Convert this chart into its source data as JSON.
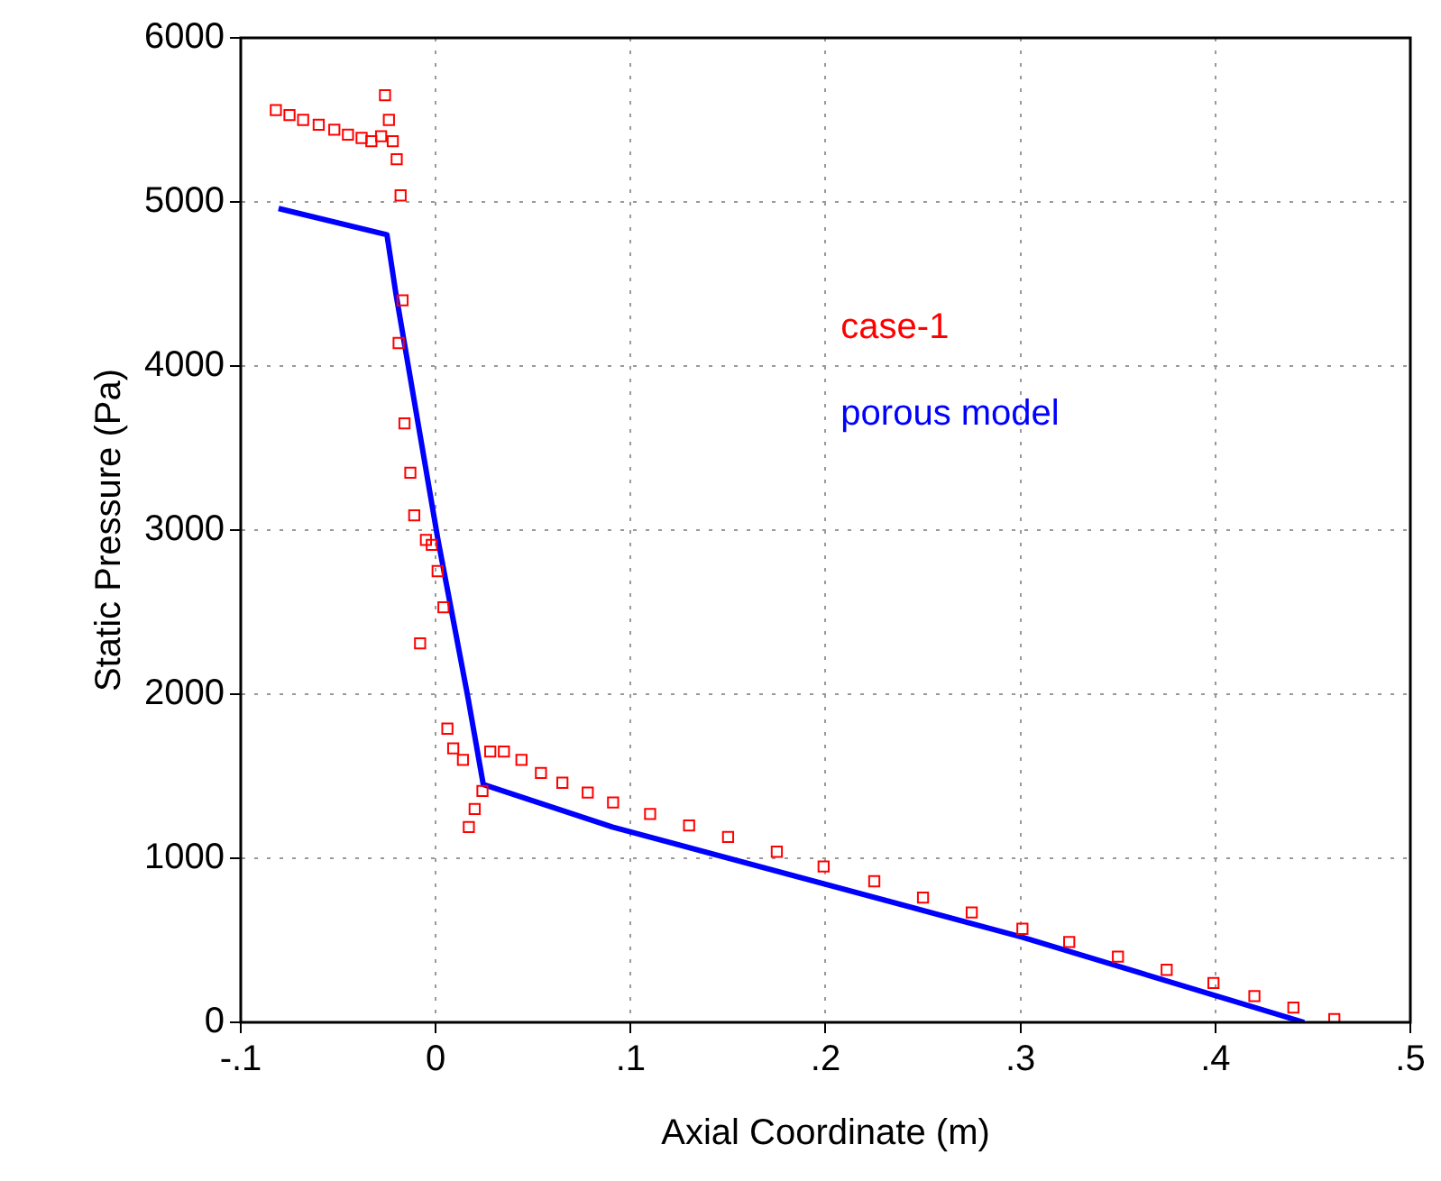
{
  "chart_data": {
    "type": "scatter",
    "xlabel": "Axial Coordinate (m)",
    "ylabel": "Static Pressure (Pa)",
    "xlim": [
      -0.1,
      0.5
    ],
    "xticks": [
      {
        "value": -0.1,
        "label": "-.1"
      },
      0,
      {
        "value": 0.1,
        "label": ".1"
      },
      {
        "value": 0.2,
        "label": ".2"
      },
      {
        "value": 0.3,
        "label": ".3"
      },
      {
        "value": 0.4,
        "label": ".4"
      },
      {
        "value": 0.5,
        "label": ".5"
      }
    ],
    "ylim": [
      0,
      6000
    ],
    "yticks": [
      0,
      1000,
      2000,
      3000,
      4000,
      5000,
      6000
    ],
    "grid": true,
    "legend": "top right",
    "series": [
      {
        "name": "case-1",
        "color": "#ff0000",
        "marker": "square",
        "x": [
          -0.082,
          -0.075,
          -0.068,
          -0.06,
          -0.052,
          -0.045,
          -0.038,
          -0.033,
          -0.028,
          -0.026,
          -0.024,
          -0.022,
          -0.02,
          -0.018,
          -0.017,
          -0.019,
          -0.016,
          -0.013,
          -0.011,
          -0.008,
          -0.005,
          -0.002,
          0.001,
          0.004,
          0.006,
          0.009,
          0.014,
          0.017,
          0.02,
          0.024,
          0.028,
          0.035,
          0.044,
          0.054,
          0.065,
          0.078,
          0.091,
          0.11,
          0.13,
          0.15,
          0.175,
          0.199,
          0.225,
          0.25,
          0.275,
          0.301,
          0.325,
          0.35,
          0.375,
          0.399,
          0.42,
          0.44,
          0.461
        ],
        "values": [
          5560,
          5530,
          5500,
          5470,
          5440,
          5410,
          5390,
          5370,
          5400,
          5650,
          5500,
          5370,
          5260,
          5040,
          4400,
          4140,
          3650,
          3350,
          3090,
          2310,
          2940,
          2910,
          2750,
          2530,
          1790,
          1670,
          1600,
          1190,
          1300,
          1410,
          1650,
          1650,
          1600,
          1520,
          1460,
          1400,
          1340,
          1270,
          1200,
          1130,
          1040,
          950,
          860,
          760,
          670,
          570,
          490,
          400,
          320,
          240,
          160,
          90,
          20
        ]
      },
      {
        "name": "porous model",
        "color": "#0000ff",
        "type": "line",
        "marker": "none",
        "line_style": "solid",
        "x": [
          -0.0806,
          -0.025,
          -0.0204,
          0.0012,
          0.0167,
          0.0244,
          0.0907,
          0.3006,
          0.4455
        ],
        "values": [
          4960,
          4800,
          4440,
          2940,
          1970,
          1450,
          1190,
          520,
          0
        ]
      }
    ]
  }
}
